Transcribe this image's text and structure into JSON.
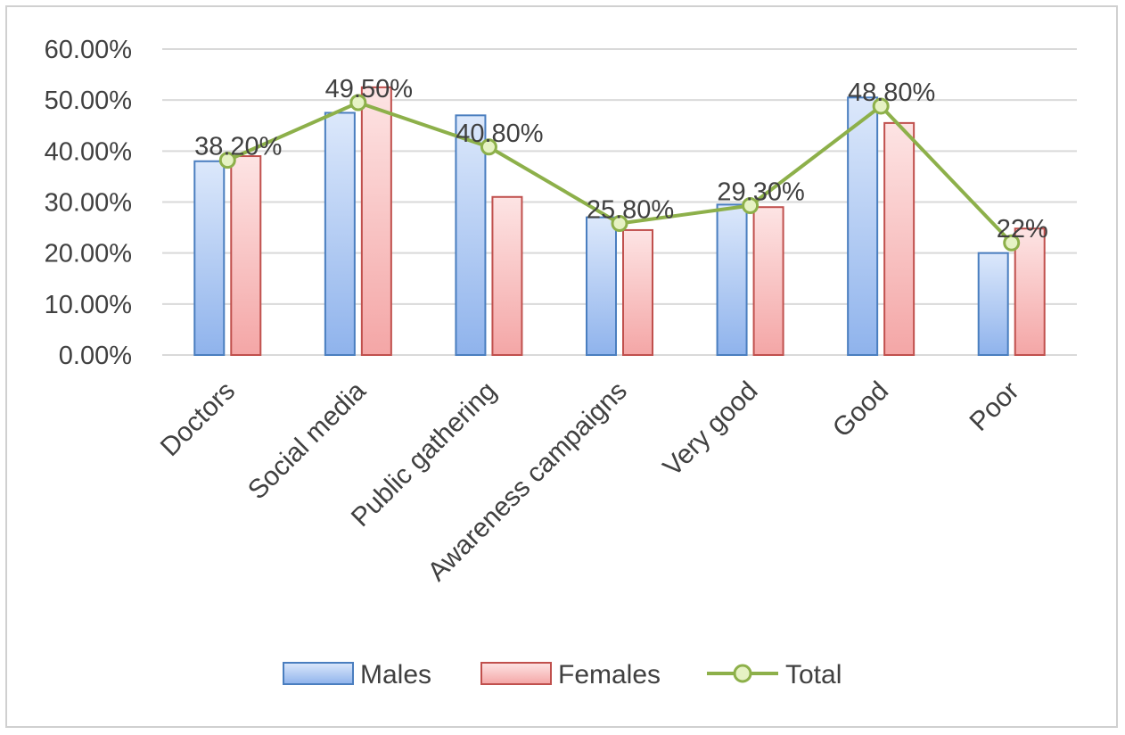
{
  "chart_data": {
    "type": "bar",
    "categories": [
      "Doctors",
      "Social media",
      "Public gathering",
      "Awareness campaigns",
      "Very good",
      "Good",
      "Poor"
    ],
    "series": [
      {
        "name": "Males",
        "kind": "bar",
        "values": [
          38.0,
          47.5,
          47.0,
          27.0,
          29.5,
          50.5,
          20.0
        ]
      },
      {
        "name": "Females",
        "kind": "bar",
        "values": [
          39.0,
          52.5,
          31.0,
          24.5,
          29.0,
          45.5,
          24.8
        ]
      },
      {
        "name": "Total",
        "kind": "line",
        "values": [
          38.2,
          49.5,
          40.8,
          25.8,
          29.3,
          48.8,
          22.0
        ]
      }
    ],
    "data_labels": [
      "38.20%",
      "49.50%",
      "40.80%",
      "25.80%",
      "29.30%",
      "48.80%",
      "22%"
    ],
    "y_ticks": [
      "0.00%",
      "10.00%",
      "20.00%",
      "30.00%",
      "40.00%",
      "50.00%",
      "60.00%"
    ],
    "ylim": [
      0,
      60
    ],
    "grid": true,
    "legend_position": "bottom",
    "colors": {
      "males_fill_top": "#dce8fb",
      "males_fill_bottom": "#8fb3ec",
      "males_border": "#4a7ebf",
      "females_fill_top": "#fde4e4",
      "females_fill_bottom": "#f4a6a6",
      "females_border": "#c0504d",
      "total_line": "#8db04a",
      "total_marker": "#e6f2c4",
      "grid": "#d9d9d9",
      "frame": "#d0d0d0"
    }
  }
}
